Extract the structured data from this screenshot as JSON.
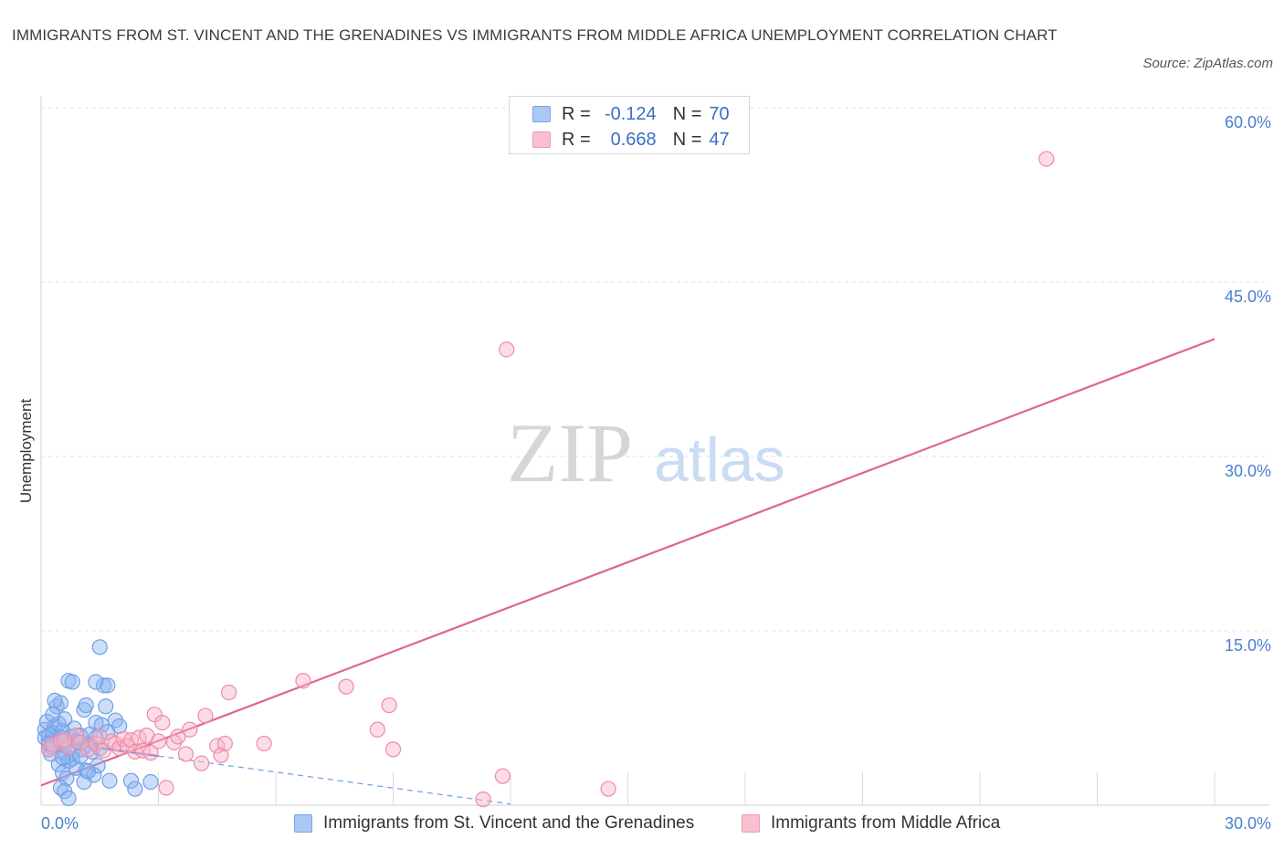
{
  "title": "IMMIGRANTS FROM ST. VINCENT AND THE GRENADINES VS IMMIGRANTS FROM MIDDLE AFRICA UNEMPLOYMENT CORRELATION CHART",
  "source": "Source: ZipAtlas.com",
  "watermark": {
    "zip": "ZIP",
    "atlas": "atlas"
  },
  "legend": {
    "rows": [
      {
        "r_label": "R =",
        "r_value": "-0.124",
        "n_label": "N =",
        "n_value": "70",
        "color": "#a9c8f5",
        "border": "#7aa6e6"
      },
      {
        "r_label": "R =",
        "r_value": "0.668",
        "n_label": "N =",
        "n_value": "47",
        "color": "#f9c0d0",
        "border": "#ee9ab3"
      }
    ]
  },
  "bottom_legend": [
    {
      "label": "Immigrants from St. Vincent and the Grenadines",
      "color": "#a9c8f5",
      "border": "#7aa6e6"
    },
    {
      "label": "Immigrants from Middle Africa",
      "color": "#f9c0d0",
      "border": "#ee9ab3"
    }
  ],
  "chart_data": {
    "type": "scatter",
    "title": "IMMIGRANTS FROM ST. VINCENT AND THE GRENADINES VS IMMIGRANTS FROM MIDDLE AFRICA UNEMPLOYMENT CORRELATION CHART",
    "xlabel": "",
    "ylabel": "Unemployment",
    "xlim": [
      0,
      30
    ],
    "ylim": [
      0,
      60
    ],
    "x_tick_labels": [
      "0.0%",
      "30.0%"
    ],
    "y_ticks": [
      15,
      30,
      45,
      60
    ],
    "y_tick_labels": [
      "15.0%",
      "30.0%",
      "45.0%",
      "60.0%"
    ],
    "grid": true,
    "series": [
      {
        "name": "Immigrants from St. Vincent and the Grenadines",
        "color": "#6fa0e8",
        "fill": "rgba(140,180,240,0.45)",
        "trend": {
          "x": [
            0,
            12
          ],
          "y": [
            5.6,
            0.1
          ],
          "style": "dashed-after-3"
        },
        "points": [
          [
            0.1,
            6.5
          ],
          [
            0.2,
            6.0
          ],
          [
            0.3,
            5.5
          ],
          [
            0.15,
            7.2
          ],
          [
            0.25,
            5.0
          ],
          [
            0.35,
            6.8
          ],
          [
            0.4,
            5.3
          ],
          [
            0.1,
            5.8
          ],
          [
            0.2,
            4.8
          ],
          [
            0.3,
            6.2
          ],
          [
            0.45,
            7.0
          ],
          [
            0.5,
            5.6
          ],
          [
            0.55,
            6.4
          ],
          [
            0.6,
            5.1
          ],
          [
            0.65,
            4.2
          ],
          [
            0.7,
            3.8
          ],
          [
            0.75,
            5.9
          ],
          [
            0.8,
            4.5
          ],
          [
            0.85,
            6.6
          ],
          [
            0.9,
            3.2
          ],
          [
            0.4,
            8.5
          ],
          [
            0.5,
            8.8
          ],
          [
            0.6,
            7.4
          ],
          [
            0.7,
            5.0
          ],
          [
            0.35,
            9.0
          ],
          [
            0.45,
            3.5
          ],
          [
            0.55,
            2.8
          ],
          [
            0.65,
            2.3
          ],
          [
            0.5,
            1.5
          ],
          [
            0.6,
            1.2
          ],
          [
            0.7,
            0.6
          ],
          [
            0.8,
            4.0
          ],
          [
            0.95,
            5.4
          ],
          [
            1.0,
            6.0
          ],
          [
            1.05,
            4.8
          ],
          [
            1.1,
            2.0
          ],
          [
            1.15,
            3.0
          ],
          [
            1.2,
            5.2
          ],
          [
            1.3,
            4.6
          ],
          [
            1.35,
            2.6
          ],
          [
            1.1,
            8.2
          ],
          [
            1.15,
            8.6
          ],
          [
            1.25,
            6.1
          ],
          [
            1.4,
            7.1
          ],
          [
            1.45,
            3.4
          ],
          [
            1.5,
            4.9
          ],
          [
            1.55,
            6.9
          ],
          [
            1.6,
            10.3
          ],
          [
            1.5,
            13.6
          ],
          [
            1.4,
            5.8
          ],
          [
            0.7,
            10.7
          ],
          [
            0.8,
            10.6
          ],
          [
            1.4,
            10.6
          ],
          [
            1.7,
            10.3
          ],
          [
            1.65,
            8.5
          ],
          [
            1.7,
            6.3
          ],
          [
            1.75,
            2.1
          ],
          [
            1.9,
            7.3
          ],
          [
            2.0,
            6.8
          ],
          [
            2.3,
            2.1
          ],
          [
            2.4,
            1.4
          ],
          [
            2.8,
            2.0
          ],
          [
            0.25,
            4.4
          ],
          [
            0.3,
            7.8
          ],
          [
            0.2,
            5.3
          ],
          [
            0.55,
            4.1
          ],
          [
            1.0,
            4.2
          ],
          [
            0.9,
            5.5
          ],
          [
            1.2,
            2.9
          ],
          [
            0.5,
            5.8
          ]
        ]
      },
      {
        "name": "Immigrants from Middle Africa",
        "color": "#ee8aa8",
        "fill": "rgba(249,180,200,0.45)",
        "trend": {
          "x": [
            0,
            30
          ],
          "y": [
            1.7,
            40.1
          ],
          "style": "solid"
        },
        "points": [
          [
            0.2,
            4.8
          ],
          [
            0.3,
            5.2
          ],
          [
            0.5,
            5.5
          ],
          [
            0.7,
            5.0
          ],
          [
            0.9,
            6.0
          ],
          [
            1.0,
            5.4
          ],
          [
            1.2,
            4.8
          ],
          [
            1.4,
            5.3
          ],
          [
            1.6,
            4.7
          ],
          [
            1.8,
            5.5
          ],
          [
            1.9,
            5.3
          ],
          [
            2.0,
            4.9
          ],
          [
            2.1,
            5.7
          ],
          [
            2.2,
            5.1
          ],
          [
            2.3,
            5.6
          ],
          [
            2.4,
            4.6
          ],
          [
            2.5,
            5.8
          ],
          [
            2.6,
            4.7
          ],
          [
            2.8,
            4.5
          ],
          [
            2.9,
            7.8
          ],
          [
            3.0,
            5.5
          ],
          [
            3.1,
            7.1
          ],
          [
            3.4,
            5.4
          ],
          [
            3.5,
            5.9
          ],
          [
            3.7,
            4.4
          ],
          [
            3.8,
            6.5
          ],
          [
            4.1,
            3.6
          ],
          [
            4.2,
            7.7
          ],
          [
            4.5,
            5.1
          ],
          [
            4.6,
            4.3
          ],
          [
            4.7,
            5.3
          ],
          [
            4.8,
            9.7
          ],
          [
            5.7,
            5.3
          ],
          [
            3.2,
            1.5
          ],
          [
            6.7,
            10.7
          ],
          [
            7.8,
            10.2
          ],
          [
            8.6,
            6.5
          ],
          [
            8.9,
            8.6
          ],
          [
            9.0,
            4.8
          ],
          [
            11.3,
            0.5
          ],
          [
            11.8,
            2.5
          ],
          [
            11.9,
            39.2
          ],
          [
            14.5,
            1.4
          ],
          [
            25.7,
            55.6
          ],
          [
            1.5,
            5.9
          ],
          [
            0.6,
            5.6
          ],
          [
            2.7,
            6.0
          ]
        ]
      }
    ]
  }
}
